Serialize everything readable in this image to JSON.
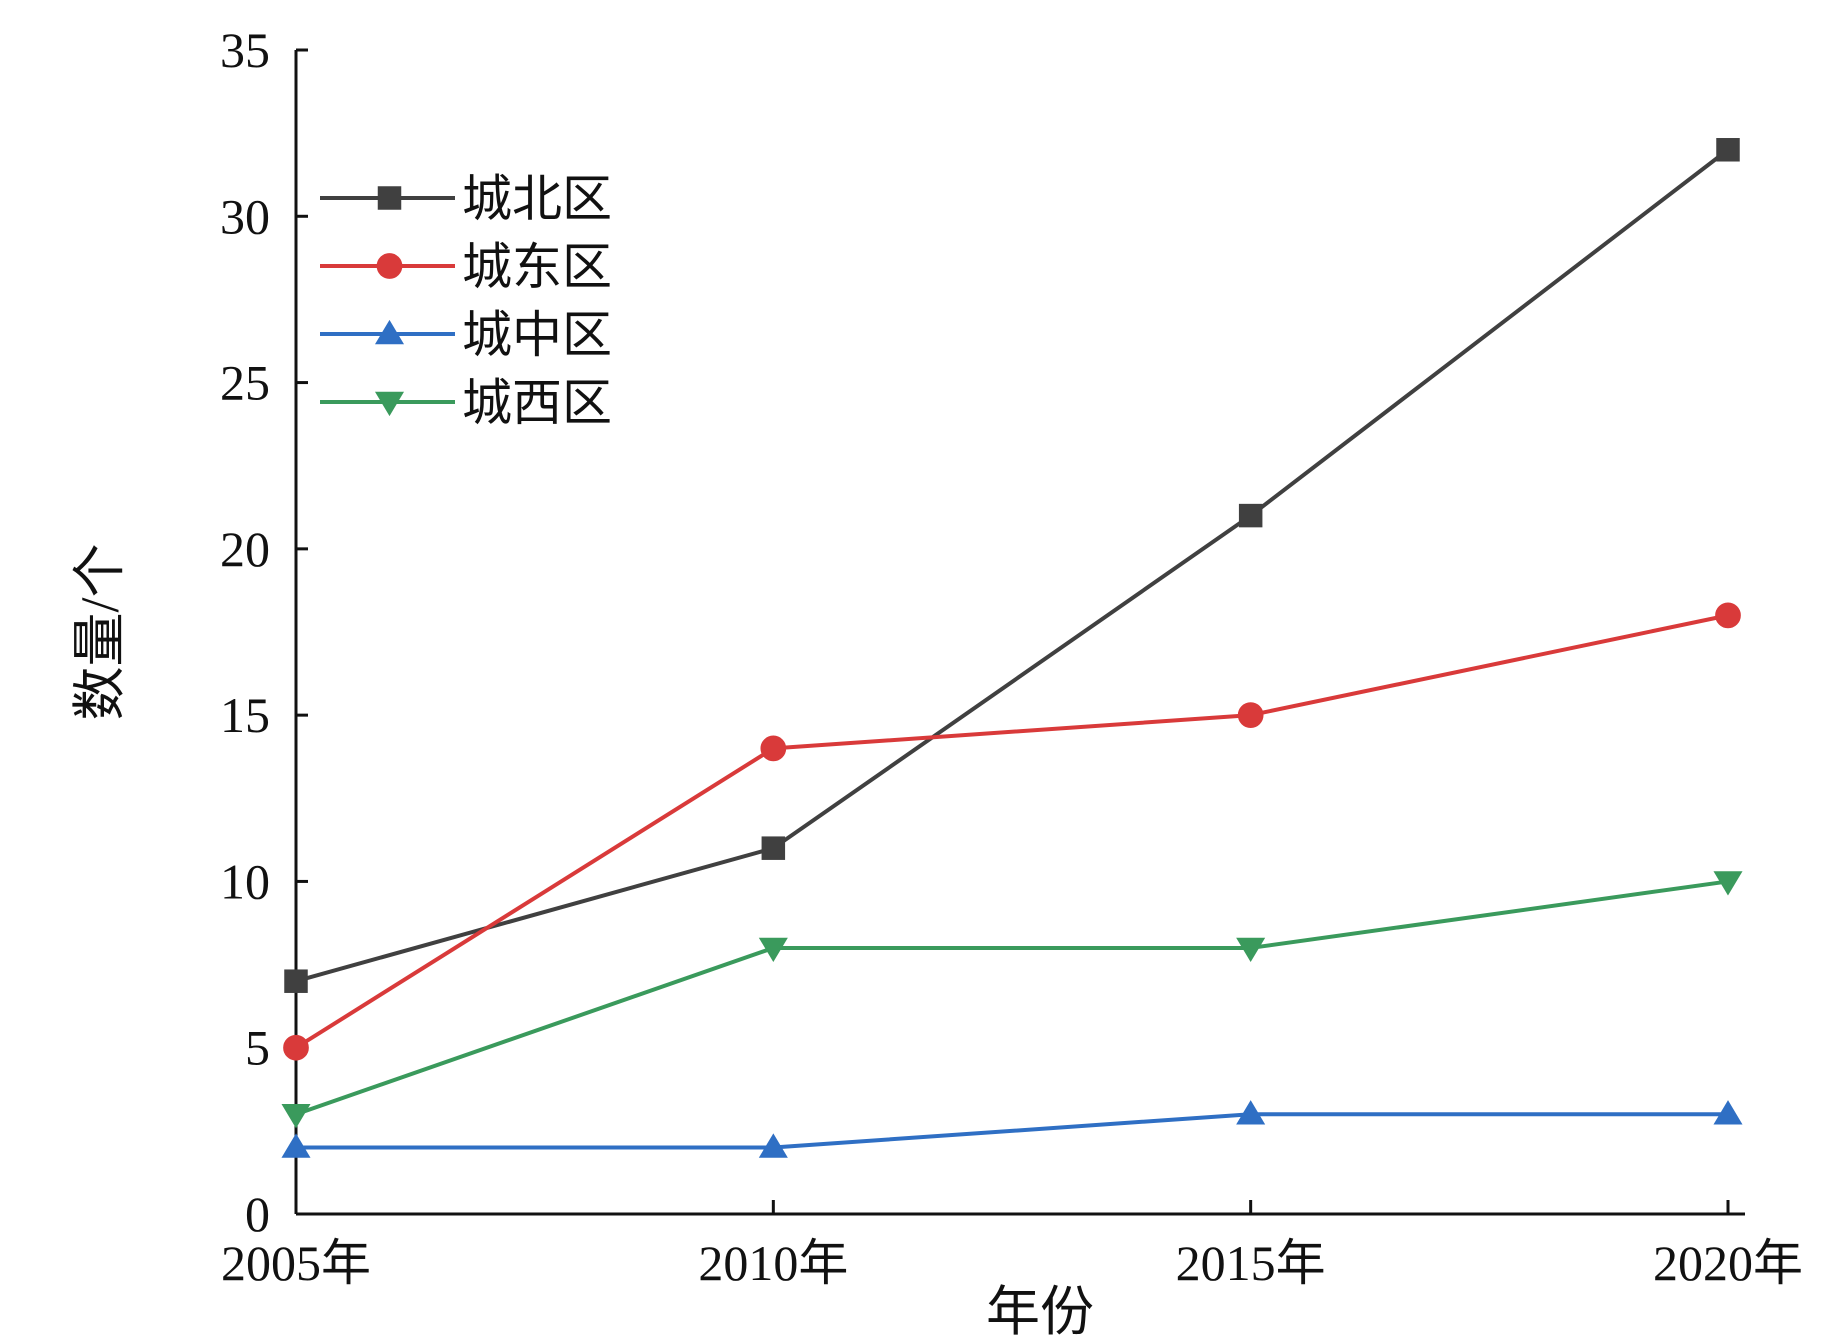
{
  "chart_data": {
    "type": "line",
    "title": "",
    "xlabel": "年份",
    "ylabel": "数量/个",
    "categories": [
      "2005年",
      "2010年",
      "2015年",
      "2020年"
    ],
    "ylim": [
      0,
      35
    ],
    "yticks": [
      0,
      5,
      10,
      15,
      20,
      25,
      30,
      35
    ],
    "grid": false,
    "legend_position": "top-left",
    "series": [
      {
        "name": "城北区",
        "color": "#404040",
        "marker": "square",
        "values": [
          7,
          11,
          21,
          32
        ]
      },
      {
        "name": "城东区",
        "color": "#d93a3a",
        "marker": "circle",
        "values": [
          5,
          14,
          15,
          18
        ]
      },
      {
        "name": "城中区",
        "color": "#2f6fc4",
        "marker": "triangle-up",
        "values": [
          2,
          2,
          3,
          3
        ]
      },
      {
        "name": "城西区",
        "color": "#3a9a5c",
        "marker": "triangle-down",
        "values": [
          3,
          8,
          8,
          10
        ]
      }
    ]
  }
}
